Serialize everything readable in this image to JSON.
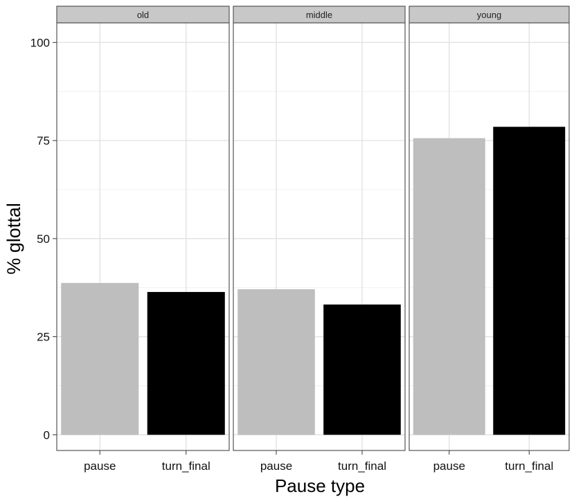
{
  "chart_data": {
    "type": "bar",
    "facets": [
      "old",
      "middle",
      "young"
    ],
    "categories": [
      "pause",
      "turn_final"
    ],
    "values": {
      "old": [
        38.7,
        36.4
      ],
      "middle": [
        37.1,
        33.2
      ],
      "young": [
        75.6,
        78.5
      ]
    },
    "colors": {
      "pause": "#bebebe",
      "turn_final": "#000000"
    },
    "title": "",
    "xlabel": "Pause type",
    "ylabel": "% glottal",
    "yticks": [
      0,
      25,
      50,
      75,
      100
    ],
    "ytick_labels": [
      "0",
      "25",
      "50",
      "75",
      "100"
    ],
    "ylim": [
      -4,
      105
    ],
    "grid": true,
    "legend": "none"
  }
}
